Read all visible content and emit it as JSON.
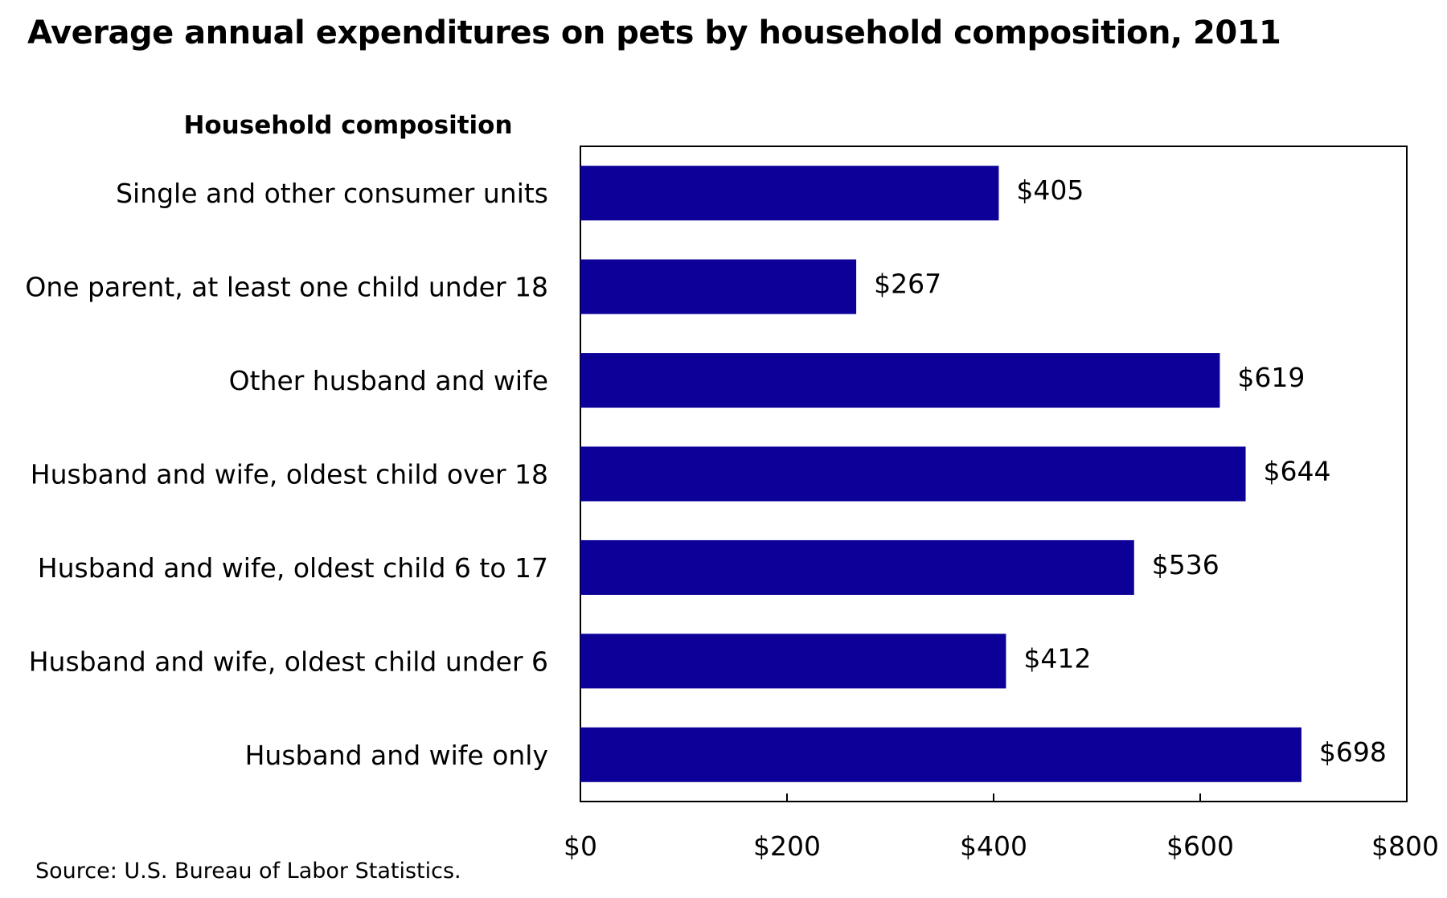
{
  "chart_data": {
    "type": "bar",
    "orientation": "horizontal",
    "title": "Average annual expenditures on pets by household composition, 2011",
    "ylabel": "Household composition",
    "xlabel": "",
    "categories": [
      "Single and other consumer units",
      "One parent, at least one child under 18",
      "Other husband and wife",
      "Husband and wife, oldest child over 18",
      "Husband and wife, oldest child 6 to 17",
      "Husband and wife, oldest child under 6",
      "Husband and wife only"
    ],
    "values": [
      405,
      267,
      619,
      644,
      536,
      412,
      698
    ],
    "value_labels": [
      "$405",
      "$267",
      "$619",
      "$644",
      "$536",
      "$412",
      "$698"
    ],
    "xlim": [
      0,
      800
    ],
    "xticks": [
      0,
      200,
      400,
      600,
      800
    ],
    "xtick_labels": [
      "$0",
      "$200",
      "$400",
      "$600",
      "$800"
    ],
    "grid": false,
    "bar_color": "#0c0099",
    "source": "Source: U.S. Bureau of Labor Statistics."
  }
}
